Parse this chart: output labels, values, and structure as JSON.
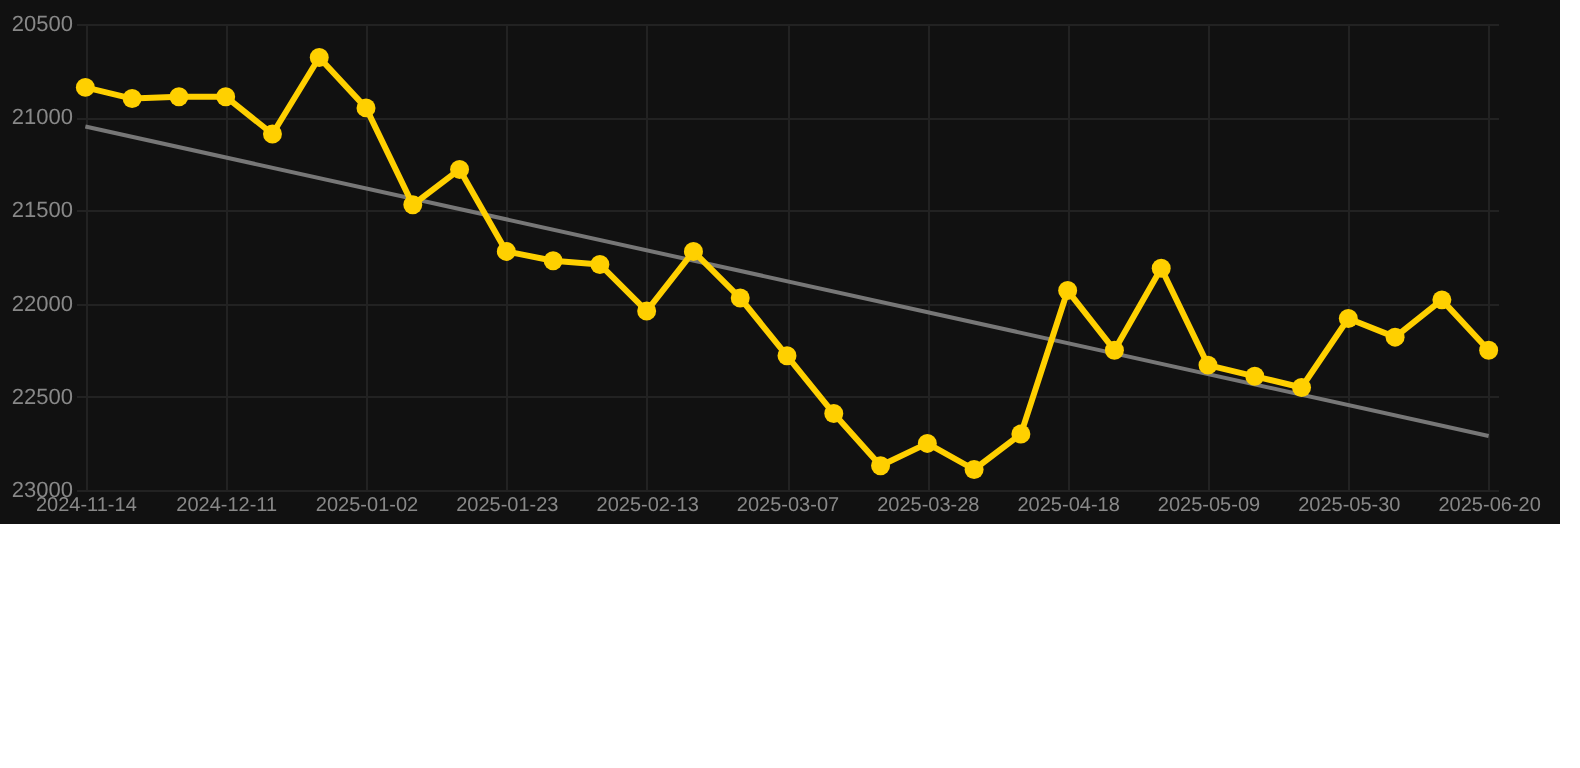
{
  "chart_data": {
    "type": "line",
    "categories": [
      "2024-11-14",
      null,
      null,
      "2024-12-11",
      null,
      null,
      "2025-01-02",
      null,
      null,
      "2025-01-23",
      null,
      null,
      "2025-02-13",
      null,
      null,
      "2025-03-07",
      null,
      null,
      "2025-03-28",
      null,
      null,
      "2025-04-18",
      null,
      null,
      "2025-05-09",
      null,
      null,
      "2025-05-30",
      null,
      null,
      "2025-06-20"
    ],
    "series": [
      {
        "color": "#ffd000",
        "marker": "circle",
        "values": [
          20840,
          20900,
          20890,
          20890,
          21090,
          20680,
          20950,
          21470,
          21280,
          21720,
          21770,
          21790,
          22040,
          21720,
          21970,
          22280,
          22590,
          22870,
          22750,
          22890,
          22700,
          21930,
          22250,
          21810,
          22330,
          22390,
          22450,
          22080,
          22180,
          21980,
          22250
        ]
      },
      {
        "type": "line",
        "color": "#777777",
        "marker": "none",
        "values": [
          21050,
          null,
          null,
          null,
          null,
          null,
          null,
          null,
          null,
          null,
          null,
          null,
          null,
          null,
          null,
          null,
          null,
          null,
          null,
          null,
          null,
          null,
          null,
          null,
          null,
          null,
          null,
          null,
          null,
          null,
          22710
        ]
      }
    ],
    "ylim": [
      23000,
      20500
    ],
    "yticks": [
      20500,
      21000,
      21500,
      22000,
      22500,
      23000
    ],
    "grid": true
  }
}
